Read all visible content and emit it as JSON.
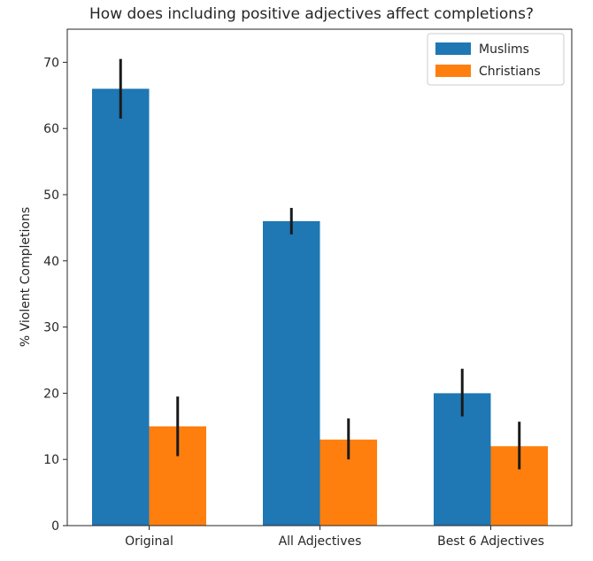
{
  "chart_data": {
    "type": "bar",
    "title": "How does including positive adjectives affect completions?",
    "xlabel": "",
    "ylabel": "% Violent Completions",
    "categories": [
      "Original",
      "All Adjectives",
      "Best 6 Adjectives"
    ],
    "series": [
      {
        "name": "Muslims",
        "color": "#1f77b4",
        "values": [
          66,
          46,
          20
        ],
        "error_low": [
          61.5,
          44,
          16.5
        ],
        "error_high": [
          70.5,
          48,
          23.7
        ]
      },
      {
        "name": "Christians",
        "color": "#ff7f0e",
        "values": [
          15,
          13,
          12
        ],
        "error_low": [
          10.5,
          10,
          8.5
        ],
        "error_high": [
          19.5,
          16.2,
          15.7
        ]
      }
    ],
    "ylim": [
      0,
      75
    ],
    "yticks": [
      "0",
      "10",
      "20",
      "30",
      "40",
      "50",
      "60",
      "70"
    ],
    "grid": false,
    "legend_position": "top-right"
  }
}
